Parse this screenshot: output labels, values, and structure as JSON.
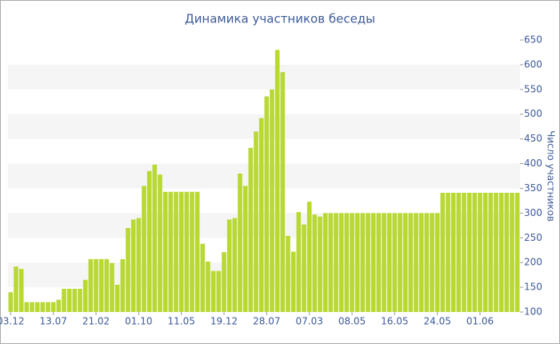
{
  "chart_data": {
    "type": "bar",
    "title": "Динамика участников беседы",
    "y_label": "Число участников",
    "categories": [
      "03.12",
      null,
      null,
      null,
      null,
      null,
      null,
      null,
      "13.07",
      null,
      null,
      null,
      null,
      null,
      null,
      null,
      "21.02",
      null,
      null,
      null,
      null,
      null,
      null,
      null,
      "01.10",
      null,
      null,
      null,
      null,
      null,
      null,
      null,
      "11.05",
      null,
      null,
      null,
      null,
      null,
      null,
      null,
      "19.12",
      null,
      null,
      null,
      null,
      null,
      null,
      null,
      "28.07",
      null,
      null,
      null,
      null,
      null,
      null,
      null,
      "07.03",
      null,
      null,
      null,
      null,
      null,
      null,
      null,
      "08.05",
      null,
      null,
      null,
      null,
      null,
      null,
      null,
      "16.05",
      null,
      null,
      null,
      null,
      null,
      null,
      null,
      "24.05",
      null,
      null,
      null,
      null,
      null,
      null,
      null,
      "01.06",
      null,
      null,
      null,
      null,
      null,
      null,
      null
    ],
    "values": [
      140,
      192,
      187,
      120,
      120,
      120,
      120,
      120,
      120,
      125,
      147,
      147,
      147,
      147,
      165,
      207,
      207,
      207,
      207,
      199,
      155,
      207,
      270,
      287,
      290,
      355,
      385,
      398,
      378,
      343,
      343,
      343,
      343,
      343,
      343,
      343,
      238,
      202,
      183,
      183,
      221,
      287,
      290,
      380,
      355,
      432,
      465,
      492,
      536,
      550,
      630,
      585,
      254,
      222,
      302,
      277,
      323,
      297,
      293,
      300,
      300,
      300,
      300,
      300,
      300,
      300,
      300,
      300,
      300,
      300,
      300,
      300,
      300,
      300,
      300,
      300,
      300,
      300,
      300,
      300,
      300,
      341,
      341,
      341,
      341,
      341,
      341,
      341,
      341,
      341,
      341,
      341,
      341,
      341,
      341,
      341
    ],
    "color": "#b8d832",
    "ylim": [
      100,
      650
    ],
    "yticks": [
      100,
      150,
      200,
      250,
      300,
      350,
      400,
      450,
      500,
      550,
      600,
      650
    ],
    "grid": true
  }
}
